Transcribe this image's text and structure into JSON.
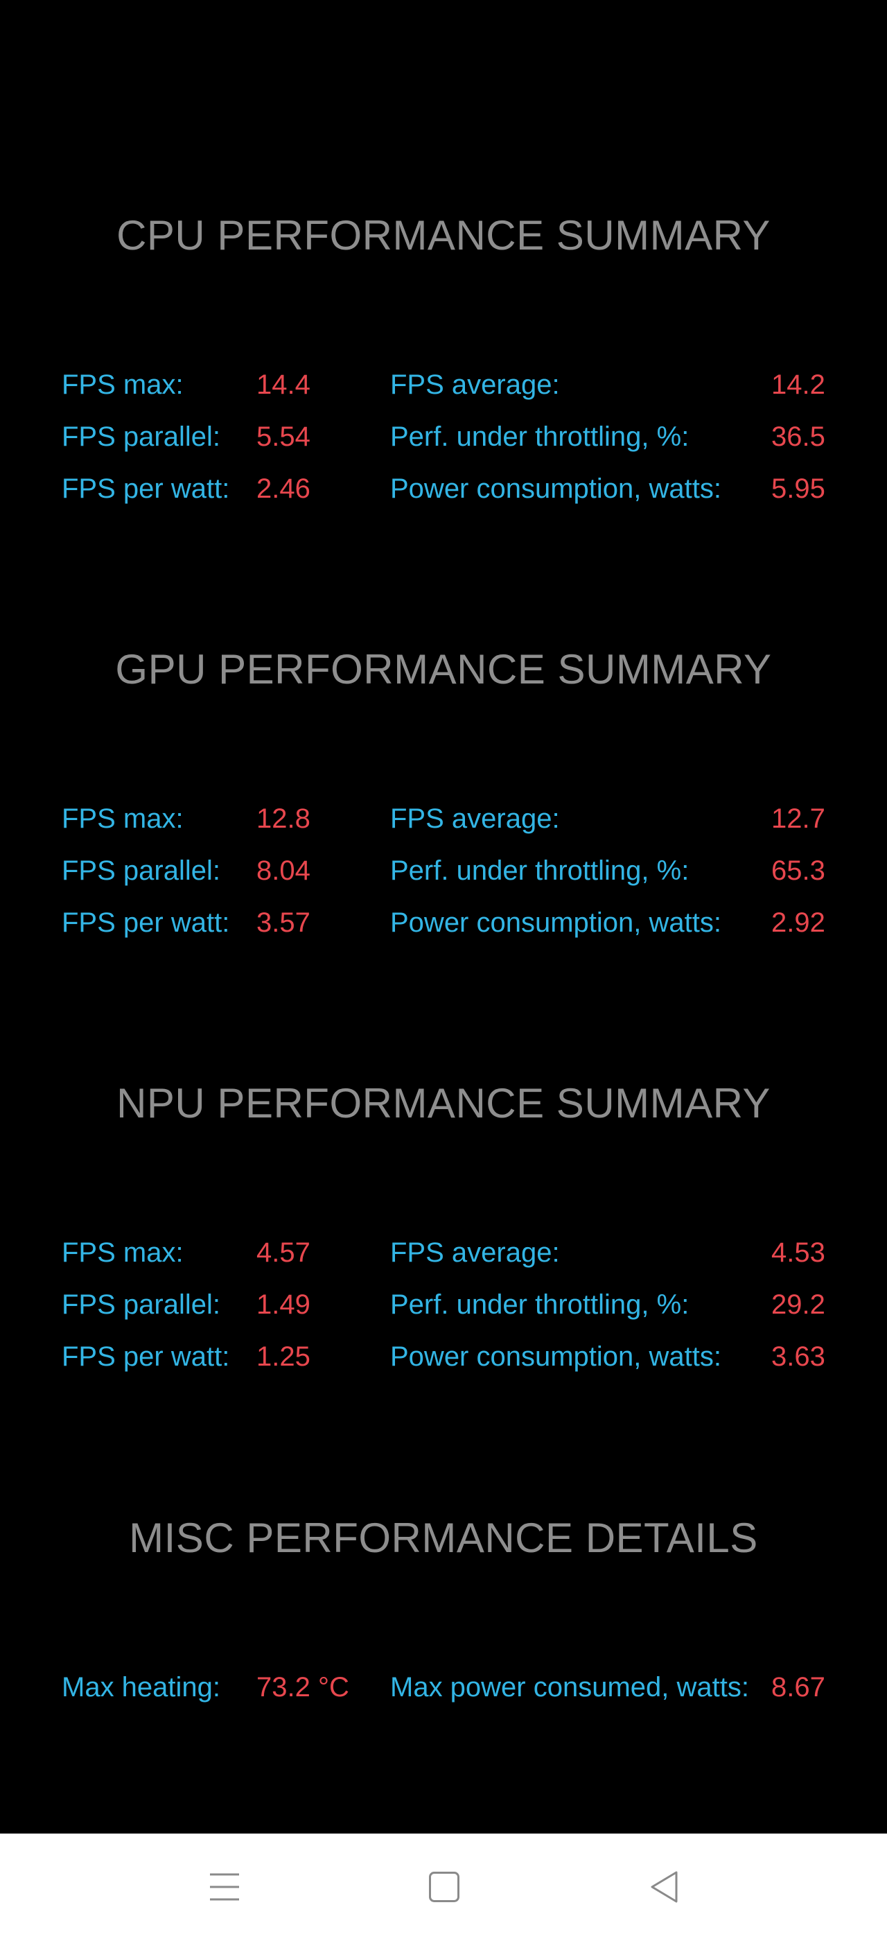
{
  "sections": [
    {
      "title": "CPU PERFORMANCE SUMMARY",
      "stats": [
        {
          "label": "FPS max:",
          "value": "14.4"
        },
        {
          "label": "FPS average:",
          "value": "14.2"
        },
        {
          "label": "FPS parallel:",
          "value": "5.54"
        },
        {
          "label": "Perf. under throttling, %:",
          "value": "36.5"
        },
        {
          "label": "FPS per watt:",
          "value": "2.46"
        },
        {
          "label": "Power consumption, watts:",
          "value": "5.95"
        }
      ]
    },
    {
      "title": "GPU PERFORMANCE SUMMARY",
      "stats": [
        {
          "label": "FPS max:",
          "value": "12.8"
        },
        {
          "label": "FPS average:",
          "value": "12.7"
        },
        {
          "label": "FPS parallel:",
          "value": "8.04"
        },
        {
          "label": "Perf. under throttling, %:",
          "value": "65.3"
        },
        {
          "label": "FPS per watt:",
          "value": "3.57"
        },
        {
          "label": "Power consumption, watts:",
          "value": "2.92"
        }
      ]
    },
    {
      "title": "NPU PERFORMANCE SUMMARY",
      "stats": [
        {
          "label": "FPS max:",
          "value": "4.57"
        },
        {
          "label": "FPS average:",
          "value": "4.53"
        },
        {
          "label": "FPS parallel:",
          "value": "1.49"
        },
        {
          "label": "Perf. under throttling, %:",
          "value": "29.2"
        },
        {
          "label": "FPS per watt:",
          "value": "1.25"
        },
        {
          "label": "Power consumption, watts:",
          "value": "3.63"
        }
      ]
    },
    {
      "title": "MISC PERFORMANCE DETAILS",
      "stats": [
        {
          "label": "Max heating:",
          "value": "73.2 °C"
        },
        {
          "label": "Max power consumed, watts:",
          "value": "8.67"
        }
      ]
    }
  ],
  "navbar": {
    "menu_icon": "menu-icon",
    "home_icon": "home-square-icon",
    "back_icon": "back-triangle-icon"
  },
  "colors": {
    "background": "#000000",
    "title": "#8e8e8e",
    "label": "#33b5e5",
    "value": "#e8474e",
    "navbar": "#ffffff"
  }
}
